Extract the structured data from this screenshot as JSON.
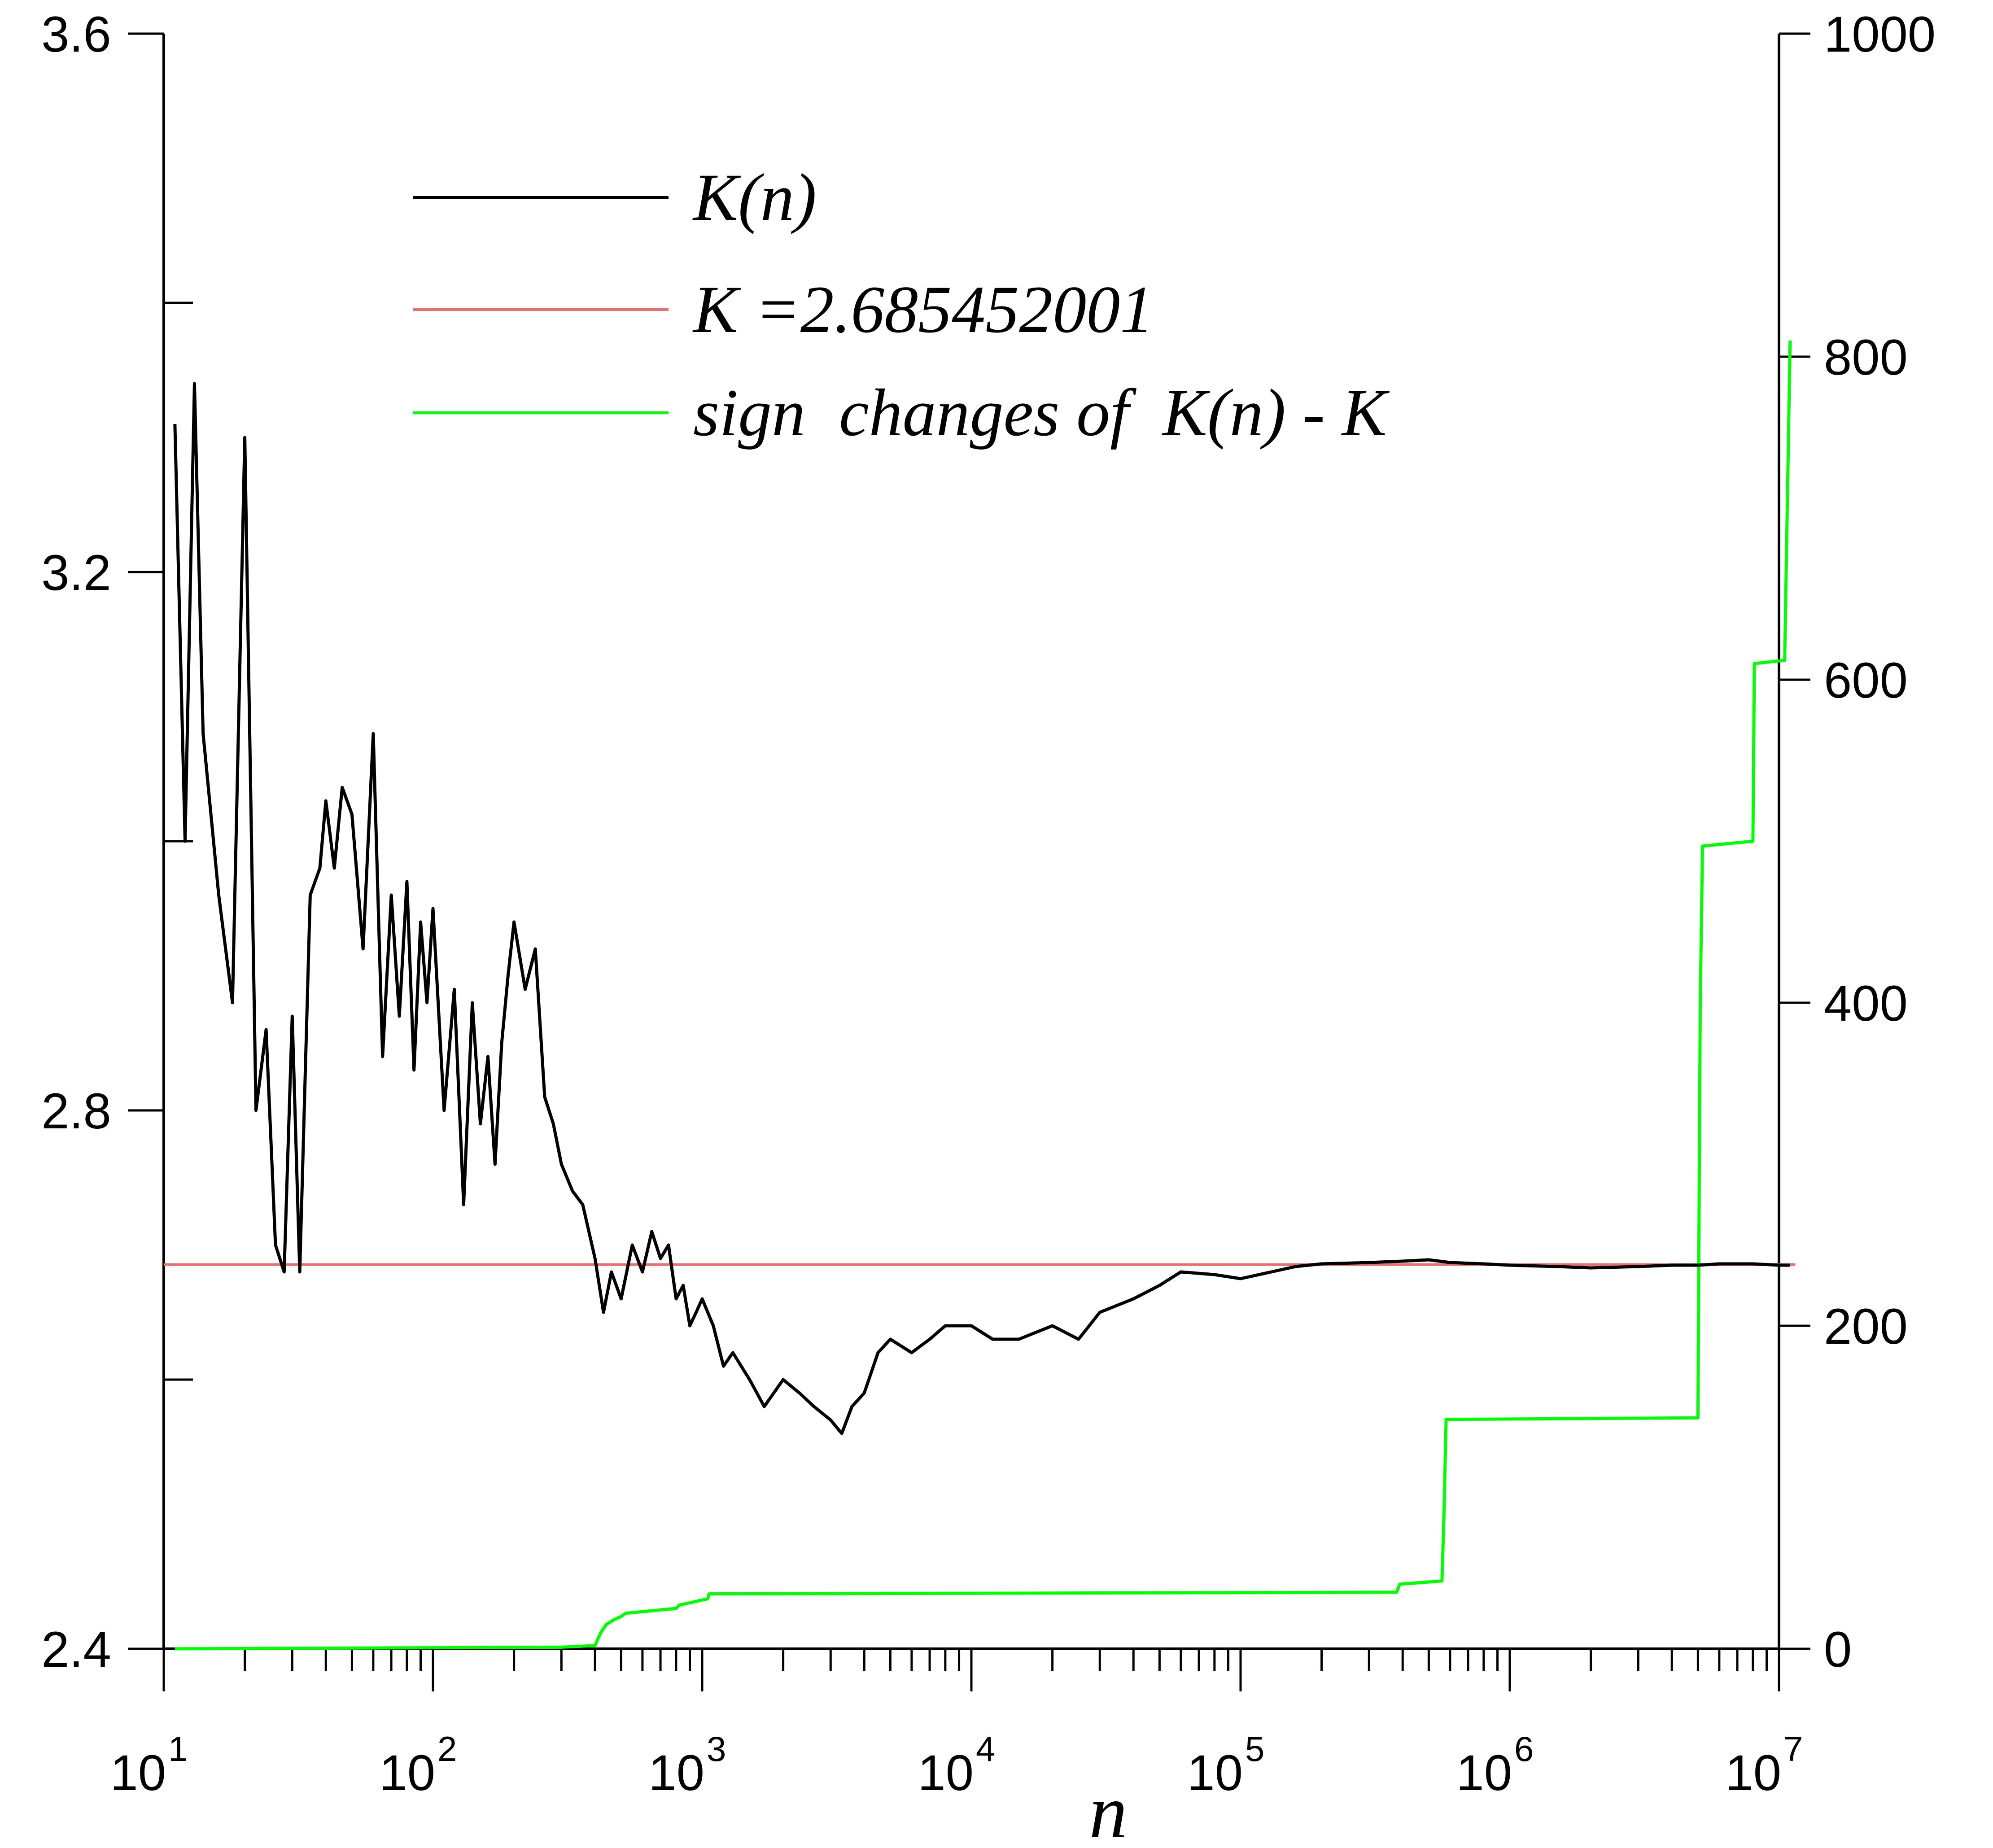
{
  "chart_data": {
    "type": "line",
    "xlabel": "n",
    "x_scale": "log",
    "x_range": [
      10,
      10000000
    ],
    "x_ticks": [
      {
        "value": 10,
        "base": "10",
        "exp": "1"
      },
      {
        "value": 100,
        "base": "10",
        "exp": "2"
      },
      {
        "value": 1000,
        "base": "10",
        "exp": "3"
      },
      {
        "value": 10000,
        "base": "10",
        "exp": "4"
      },
      {
        "value": 100000,
        "base": "10",
        "exp": "5"
      },
      {
        "value": 1000000,
        "base": "10",
        "exp": "6"
      },
      {
        "value": 10000000,
        "base": "10",
        "exp": "7"
      }
    ],
    "y_left": {
      "range": [
        2.4,
        3.6
      ],
      "ticks": [
        "2.4",
        "2.8",
        "3.2",
        "3.6"
      ],
      "minor_step": 0.2
    },
    "y_right": {
      "range": [
        0,
        1000
      ],
      "ticks": [
        "0",
        "200",
        "400",
        "600",
        "800",
        "1000"
      ]
    },
    "legend_position": "top-center",
    "grid": false,
    "series": [
      {
        "name": "K(n)",
        "axis": "left",
        "color": "#000000",
        "x": [
          11,
          12,
          13,
          14,
          16,
          18,
          20,
          22,
          24,
          26,
          28,
          30,
          32,
          35,
          38,
          40,
          43,
          46,
          50,
          55,
          60,
          65,
          70,
          75,
          80,
          85,
          90,
          95,
          100,
          110,
          120,
          130,
          140,
          150,
          160,
          170,
          180,
          190,
          200,
          220,
          240,
          260,
          280,
          300,
          330,
          360,
          400,
          430,
          460,
          500,
          550,
          600,
          650,
          700,
          750,
          800,
          850,
          900,
          950,
          1000,
          1100,
          1200,
          1300,
          1500,
          1700,
          2000,
          2300,
          2600,
          3000,
          3300,
          3600,
          4000,
          4500,
          5000,
          6000,
          7000,
          8000,
          10000,
          12000,
          15000,
          20000,
          25000,
          30000,
          40000,
          50000,
          60000,
          80000,
          100000,
          130000,
          160000,
          200000,
          300000,
          400000,
          500000,
          600000,
          800000,
          1000000,
          1500000,
          2000000,
          3000000,
          4000000,
          5000000,
          6000000,
          7000000,
          8000000,
          10000000,
          11000000
        ],
        "y": [
          3.31,
          3.0,
          3.34,
          3.08,
          2.96,
          2.88,
          3.3,
          2.8,
          2.86,
          2.7,
          2.68,
          2.87,
          2.68,
          2.96,
          2.98,
          3.03,
          2.98,
          3.04,
          3.02,
          2.92,
          3.08,
          2.84,
          2.96,
          2.87,
          2.97,
          2.83,
          2.94,
          2.88,
          2.95,
          2.8,
          2.89,
          2.73,
          2.88,
          2.79,
          2.84,
          2.76,
          2.85,
          2.9,
          2.94,
          2.89,
          2.92,
          2.81,
          2.79,
          2.76,
          2.74,
          2.73,
          2.69,
          2.65,
          2.68,
          2.66,
          2.7,
          2.68,
          2.71,
          2.69,
          2.7,
          2.66,
          2.67,
          2.64,
          2.65,
          2.66,
          2.64,
          2.61,
          2.62,
          2.6,
          2.58,
          2.6,
          2.59,
          2.58,
          2.57,
          2.56,
          2.58,
          2.59,
          2.62,
          2.63,
          2.62,
          2.63,
          2.64,
          2.64,
          2.63,
          2.63,
          2.64,
          2.63,
          2.65,
          2.66,
          2.67,
          2.68,
          2.678,
          2.675,
          2.68,
          2.684,
          2.686,
          2.687,
          2.688,
          2.689,
          2.687,
          2.686,
          2.685,
          2.684,
          2.683,
          2.684,
          2.685,
          2.685,
          2.686,
          2.686,
          2.686,
          2.685,
          2.685
        ]
      },
      {
        "name": "K =2.685452001",
        "axis": "left",
        "color": "#e87070",
        "x": [
          10,
          11500000
        ],
        "y": [
          2.685452001,
          2.685452001
        ]
      },
      {
        "name": "sign  changes of  K(n) - K",
        "axis": "right",
        "color": "#00ff00",
        "x": [
          11,
          300,
          400,
          420,
          440,
          470,
          500,
          520,
          800,
          820,
          1050,
          1060,
          380000,
          390000,
          560000,
          570000,
          580000,
          5000000,
          5100000,
          5200000,
          8000000,
          8100000,
          10500000,
          11000000
        ],
        "y": [
          0,
          1,
          2,
          10,
          15,
          18,
          20,
          22,
          25,
          27,
          31,
          34,
          35,
          40,
          42,
          85,
          142,
          143,
          400,
          497,
          500,
          610,
          612,
          810
        ]
      }
    ]
  }
}
